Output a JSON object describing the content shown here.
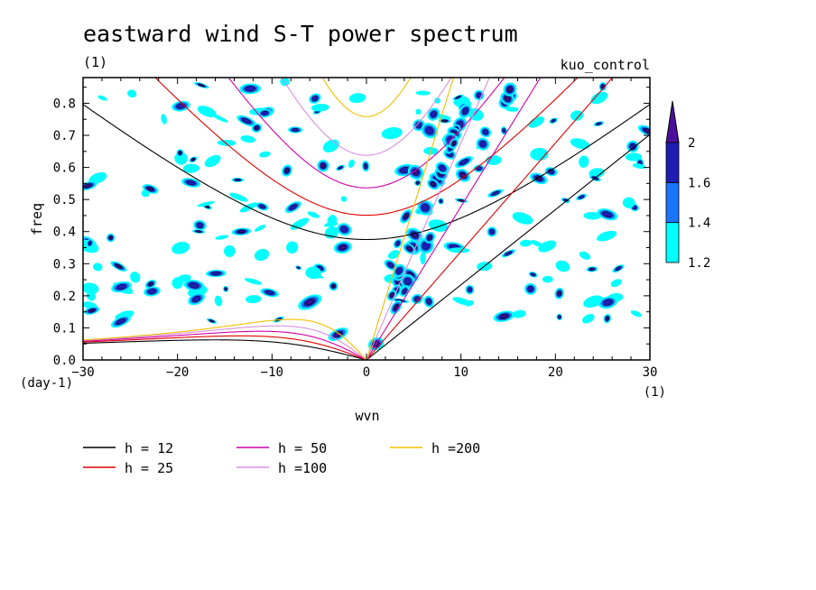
{
  "chart_data": {
    "type": "heatmap",
    "title": "eastward wind S-T power spectrum",
    "subtitle_left": "(1)",
    "subtitle_right": "kuo_control",
    "xlabel": "wvn",
    "ylabel": "freq",
    "xunit": "(1)",
    "yunit": "(day-1)",
    "xlim": [
      -30,
      30
    ],
    "ylim": [
      0,
      0.88
    ],
    "x_ticks": [
      -30,
      -20,
      -10,
      0,
      10,
      20,
      30
    ],
    "y_ticks": [
      0.0,
      0.1,
      0.2,
      0.3,
      0.4,
      0.5,
      0.6,
      0.7,
      0.8
    ],
    "x_tick_labels": [
      "−30",
      "−20",
      "−10",
      "0",
      "10",
      "20",
      "30"
    ],
    "y_tick_labels": [
      "0.0",
      "0.1",
      "0.2",
      "0.3",
      "0.4",
      "0.5",
      "0.6",
      "0.7",
      "0.8"
    ],
    "colorbar": {
      "levels": [
        "1.2",
        "1.4",
        "1.6",
        "2"
      ],
      "colors": [
        "#00ffff",
        "#1a75ff",
        "#1e1eb4",
        "#4b0f9b"
      ]
    },
    "dispersion_curves": [
      {
        "label": "h = 12",
        "h": 12,
        "color": "#000000"
      },
      {
        "label": "h = 25",
        "h": 25,
        "color": "#e00000"
      },
      {
        "label": "h = 50",
        "h": 50,
        "color": "#d000a8"
      },
      {
        "label": "h =100",
        "h": 100,
        "color": "#d890e0"
      },
      {
        "label": "h =200",
        "h": 200,
        "color": "#f0c000"
      }
    ]
  }
}
